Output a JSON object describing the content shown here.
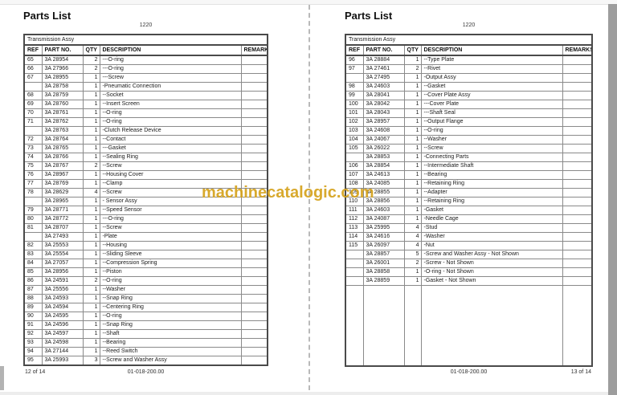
{
  "watermark": {
    "text": "machinecatalogic.com",
    "color": "#D5A21C"
  },
  "pages": [
    {
      "title": "Parts List",
      "doc_number": "1220",
      "assembly": "Transmission Assy",
      "columns": [
        "REF",
        "PART NO.",
        "QTY",
        "DESCRIPTION",
        "REMARKS"
      ],
      "rows": [
        [
          "65",
          "3A 28954",
          "2",
          "---O-ring"
        ],
        [
          "66",
          "3A 27966",
          "2",
          "---O-ring"
        ],
        [
          "67",
          "3A 28955",
          "1",
          "---Screw"
        ],
        [
          "",
          "3A 28758",
          "1",
          "-Pneumatic Connection"
        ],
        [
          "68",
          "3A 28759",
          "1",
          "--Socket"
        ],
        [
          "69",
          "3A 28760",
          "1",
          "--Insert Screen"
        ],
        [
          "70",
          "3A 28761",
          "1",
          "--O-ring"
        ],
        [
          "71",
          "3A 28762",
          "1",
          "--O-ring"
        ],
        [
          "",
          "3A 28763",
          "1",
          "-Clutch Release Device"
        ],
        [
          "72",
          "3A 28764",
          "1",
          "--Contact"
        ],
        [
          "73",
          "3A 28765",
          "1",
          "---Gasket"
        ],
        [
          "74",
          "3A 28766",
          "1",
          "--Sealing Ring"
        ],
        [
          "75",
          "3A 28767",
          "2",
          "--Screw"
        ],
        [
          "76",
          "3A 28967",
          "1",
          "--Housing Cover"
        ],
        [
          "77",
          "3A 28769",
          "1",
          "--Clamp"
        ],
        [
          "78",
          "3A 28629",
          "4",
          "--Screw"
        ],
        [
          "",
          "3A 28965",
          "1",
          "- Sensor Assy"
        ],
        [
          "79",
          "3A 28771",
          "1",
          "--Speed Sensor"
        ],
        [
          "80",
          "3A 28772",
          "1",
          "---O-ring"
        ],
        [
          "81",
          "3A 28707",
          "1",
          "--Screw"
        ],
        [
          "",
          "3A 27493",
          "1",
          "-Plate"
        ],
        [
          "82",
          "3A 25553",
          "1",
          "--Housing"
        ],
        [
          "83",
          "3A 25554",
          "1",
          "--Sliding Sleeve"
        ],
        [
          "84",
          "3A 27057",
          "1",
          "--Compression Spring"
        ],
        [
          "85",
          "3A 28956",
          "1",
          "--Piston"
        ],
        [
          "86",
          "3A 24591",
          "2",
          "--O-ring"
        ],
        [
          "87",
          "3A 25556",
          "1",
          "--Washer"
        ],
        [
          "88",
          "3A 24593",
          "1",
          "--Snap Ring"
        ],
        [
          "89",
          "3A 24594",
          "1",
          "--Centering Ring"
        ],
        [
          "90",
          "3A 24595",
          "1",
          "--O-ring"
        ],
        [
          "91",
          "3A 24596",
          "1",
          "--Snap Ring"
        ],
        [
          "92",
          "3A 24597",
          "1",
          "--Shaft"
        ],
        [
          "93",
          "3A 24598",
          "1",
          "--Bearing"
        ],
        [
          "94",
          "3A 27144",
          "1",
          "--Reed Switch"
        ],
        [
          "95",
          "3A 25993",
          "3",
          "--Screw and Washer Assy"
        ]
      ],
      "footer_left": "12 of 14",
      "footer_center": "01-018-200.00",
      "footer_right": ""
    },
    {
      "title": "Parts List",
      "doc_number": "1220",
      "assembly": "Transmission Assy",
      "columns": [
        "REF",
        "PART NO.",
        "QTY",
        "DESCRIPTION",
        "REMARKS"
      ],
      "rows": [
        [
          "96",
          "3A 28884",
          "1",
          "--Type Plate"
        ],
        [
          "97",
          "3A 27461",
          "2",
          "--Rivet"
        ],
        [
          "",
          "3A 27495",
          "1",
          "-Output Assy"
        ],
        [
          "98",
          "3A 24603",
          "1",
          "--Gasket"
        ],
        [
          "99",
          "3A 28041",
          "1",
          "--Cover Plate Assy"
        ],
        [
          "100",
          "3A 28042",
          "1",
          "---Cover Plate"
        ],
        [
          "101",
          "3A 28043",
          "1",
          "---Shaft Seal"
        ],
        [
          "102",
          "3A 28957",
          "1",
          "--Output Flange"
        ],
        [
          "103",
          "3A 24608",
          "1",
          "--O-ring"
        ],
        [
          "104",
          "3A 24067",
          "1",
          "--Washer"
        ],
        [
          "105",
          "3A 26022",
          "1",
          "--Screw"
        ],
        [
          "",
          "3A 28853",
          "1",
          "-Connecting Parts"
        ],
        [
          "106",
          "3A 28854",
          "1",
          "--Intermediate Shaft"
        ],
        [
          "107",
          "3A 24613",
          "1",
          "--Bearing"
        ],
        [
          "108",
          "3A 24085",
          "1",
          "--Retaining Ring"
        ],
        [
          "109",
          "3A 28855",
          "1",
          "--Adapter"
        ],
        [
          "110",
          "3A 28856",
          "1",
          "--Retaining Ring"
        ],
        [
          "111",
          "3A 24603",
          "1",
          "-Gasket"
        ],
        [
          "112",
          "3A 24087",
          "1",
          "-Needle Cage"
        ],
        [
          "113",
          "3A 25995",
          "4",
          "-Stud"
        ],
        [
          "114",
          "3A 24616",
          "4",
          "-Washer"
        ],
        [
          "115",
          "3A 26097",
          "4",
          "-Nut"
        ],
        [
          "",
          "3A 28857",
          "5",
          "-Screw and Washer Assy - Not Shown"
        ],
        [
          "",
          "3A 26001",
          "2",
          "-Screw - Not Shown"
        ],
        [
          "",
          "3A 28858",
          "1",
          "-O-ring - Not Shown"
        ],
        [
          "",
          "3A 28859",
          "1",
          "-Gasket - Not Shown"
        ]
      ],
      "footer_left": "",
      "footer_center": "01-018-200.00",
      "footer_right": "13 of 14"
    }
  ]
}
